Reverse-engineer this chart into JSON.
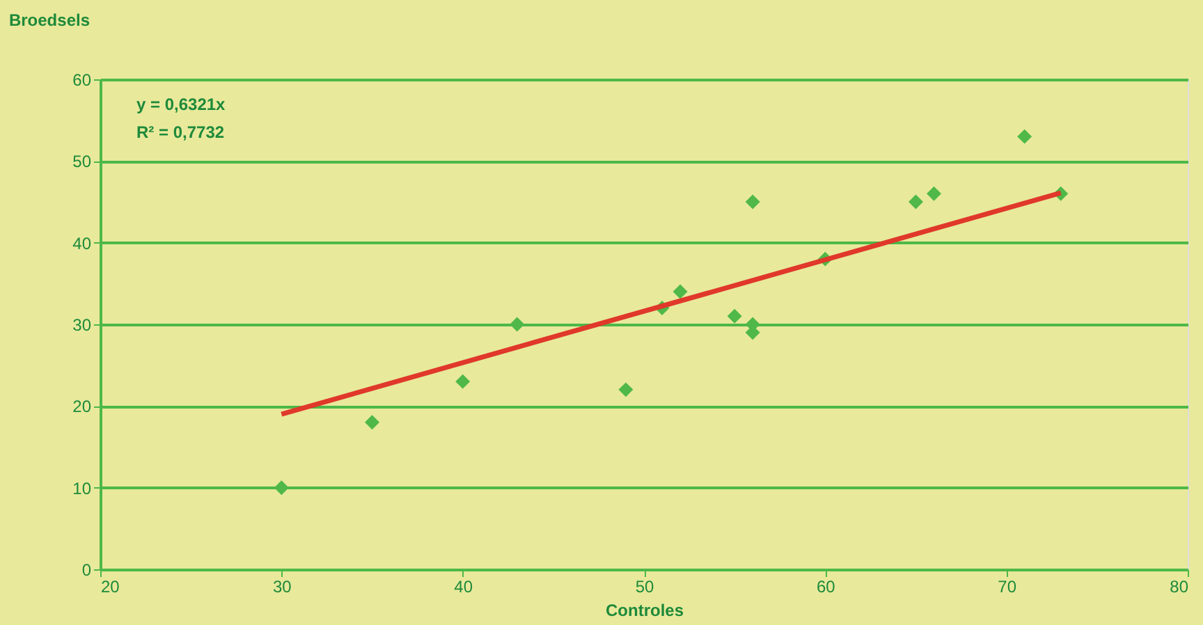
{
  "chart_data": {
    "type": "scatter",
    "xlabel": "Controles",
    "ylabel": "Broedsels",
    "annotations": [
      "y = 0,6321x",
      "R² = 0,7732"
    ],
    "series": [
      {
        "color": "#4fb848",
        "marker": "diamond",
        "x": [
          30,
          35,
          40,
          43,
          49,
          51,
          52,
          55,
          56,
          56,
          56,
          60,
          65,
          66,
          71,
          73
        ],
        "values": [
          10,
          18,
          23,
          30,
          22,
          32,
          34,
          31,
          45,
          30,
          29,
          38,
          45,
          46,
          53,
          46
        ]
      },
      {
        "type": "line",
        "color": "#e0382a",
        "x": [
          30,
          73
        ],
        "values": [
          19,
          46.1
        ]
      }
    ],
    "xlim": [
      20,
      80
    ],
    "xticks": [
      20,
      30,
      40,
      50,
      60,
      70,
      80
    ],
    "ylim": [
      0,
      60
    ],
    "yticks": [
      0,
      10,
      20,
      30,
      40,
      50,
      60
    ],
    "grid": "y"
  }
}
